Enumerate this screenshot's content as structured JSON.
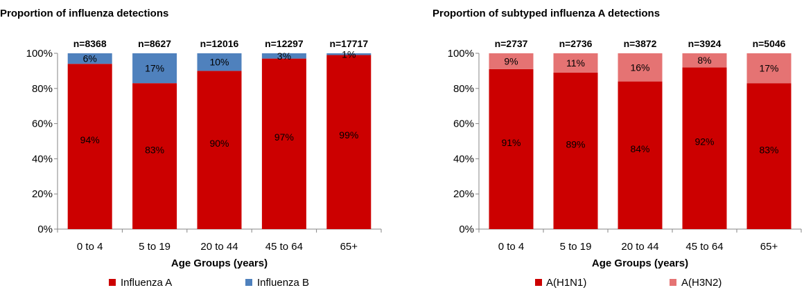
{
  "chart_data": [
    {
      "type": "bar",
      "stacked": true,
      "title": "Proportion of influenza detections",
      "xlabel": "Age Groups (years)",
      "ylabel": "",
      "ylim": [
        0,
        100
      ],
      "yticks": [
        "0%",
        "20%",
        "40%",
        "60%",
        "80%",
        "100%"
      ],
      "categories": [
        "0 to 4",
        "5 to 19",
        "20 to 44",
        "45 to 64",
        "65+"
      ],
      "n_labels": [
        "n=8368",
        "n=8627",
        "n=12016",
        "n=12297",
        "n=17717"
      ],
      "series": [
        {
          "name": "Influenza A",
          "color": "#cc0000",
          "values": [
            94,
            83,
            90,
            97,
            99
          ],
          "labels": [
            "94%",
            "83%",
            "90%",
            "97%",
            "99%"
          ]
        },
        {
          "name": "Influenza B",
          "color": "#4f81bd",
          "values": [
            6,
            17,
            10,
            3,
            1
          ],
          "labels": [
            "6%",
            "17%",
            "10%",
            "3%",
            "1%"
          ]
        }
      ],
      "legend": "bottom"
    },
    {
      "type": "bar",
      "stacked": true,
      "title": "Proportion of subtyped influenza A detections",
      "xlabel": "Age Groups (years)",
      "ylabel": "",
      "ylim": [
        0,
        100
      ],
      "yticks": [
        "0%",
        "20%",
        "40%",
        "60%",
        "80%",
        "100%"
      ],
      "categories": [
        "0 to 4",
        "5 to 19",
        "20 to 44",
        "45 to 64",
        "65+"
      ],
      "n_labels": [
        "n=2737",
        "n=2736",
        "n=3872",
        "n=3924",
        "n=5046"
      ],
      "series": [
        {
          "name": "A(H1N1)",
          "color": "#cc0000",
          "values": [
            91,
            89,
            84,
            92,
            83
          ],
          "labels": [
            "91%",
            "89%",
            "84%",
            "92%",
            "83%"
          ]
        },
        {
          "name": "A(H3N2)",
          "color": "#e57373",
          "values": [
            9,
            11,
            16,
            8,
            17
          ],
          "labels": [
            "9%",
            "11%",
            "16%",
            "8%",
            "17%"
          ]
        }
      ],
      "legend": "bottom"
    }
  ]
}
